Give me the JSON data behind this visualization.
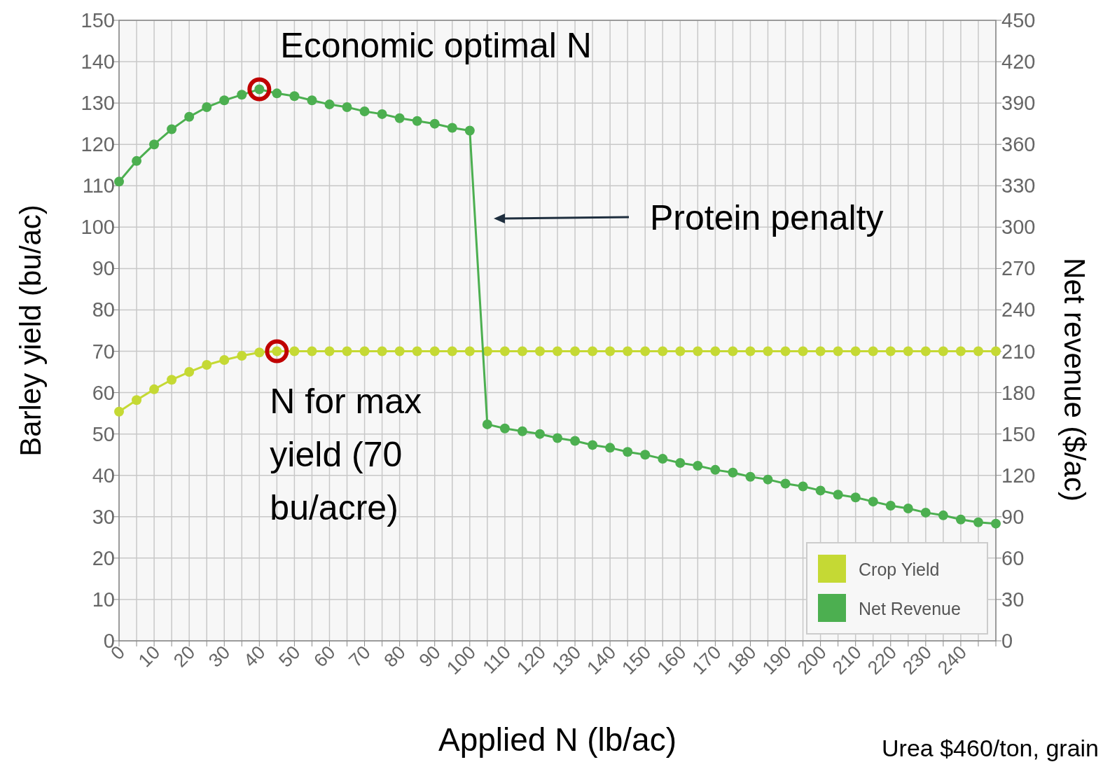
{
  "chart_data": {
    "type": "line",
    "xlabel": "Applied N (lb/ac)",
    "ylabel": "Barley yield (bu/ac)",
    "y2label": "Net revenue ($/ac)",
    "x": [
      0,
      5,
      10,
      15,
      20,
      25,
      30,
      35,
      40,
      45,
      50,
      55,
      60,
      65,
      70,
      75,
      80,
      85,
      90,
      95,
      100,
      105,
      110,
      115,
      120,
      125,
      130,
      135,
      140,
      145,
      150,
      155,
      160,
      165,
      170,
      175,
      180,
      185,
      190,
      195,
      200,
      205,
      210,
      215,
      220,
      225,
      230,
      235,
      240,
      245,
      250
    ],
    "series": [
      {
        "name": "Crop Yield",
        "color": "#c5d934",
        "values": [
          55.4,
          58.2,
          60.8,
          63.1,
          65,
          66.7,
          67.9,
          68.9,
          69.7,
          70,
          70,
          70,
          70,
          70,
          70,
          70,
          70,
          70,
          70,
          70,
          70,
          70,
          70,
          70,
          70,
          70,
          70,
          70,
          70,
          70,
          70,
          70,
          70,
          70,
          70,
          70,
          70,
          70,
          70,
          70,
          70,
          70,
          70,
          70,
          70,
          70,
          70,
          70,
          70,
          70,
          70
        ]
      },
      {
        "name": "Net Revenue",
        "color": "#4caf50",
        "axis": "y2",
        "values": [
          333,
          348,
          360,
          371,
          380,
          387,
          392,
          396,
          400,
          397,
          395,
          392,
          389,
          387,
          384,
          382,
          379,
          377,
          375,
          372,
          370,
          157,
          154,
          152,
          150,
          147,
          145,
          142,
          140,
          137,
          135,
          132,
          129,
          127,
          124,
          122,
          119,
          117,
          114,
          112,
          109,
          106,
          104,
          101,
          98,
          96,
          93,
          91,
          88,
          86,
          85
        ]
      },
      {
        "type": "scatter",
        "color": "#c00000",
        "marker": "circle",
        "x": [
          45
        ],
        "values": [
          70
        ]
      },
      {
        "type": "scatter",
        "color": "#c00000",
        "marker": "circle",
        "axis": "y2",
        "x": [
          40
        ],
        "values": [
          400
        ]
      }
    ],
    "xlim": [
      0,
      250
    ],
    "xticks": [
      0,
      {
        "value": 5,
        "label": null
      },
      10,
      {
        "value": 15,
        "label": null
      },
      20,
      {
        "value": 25,
        "label": null
      },
      30,
      {
        "value": 35,
        "label": null
      },
      40,
      {
        "value": 45,
        "label": null
      },
      50,
      {
        "value": 55,
        "label": null
      },
      60,
      {
        "value": 65,
        "label": null
      },
      70,
      {
        "value": 75,
        "label": null
      },
      80,
      {
        "value": 85,
        "label": null
      },
      90,
      {
        "value": 95,
        "label": null
      },
      100,
      {
        "value": 105,
        "label": null
      },
      110,
      {
        "value": 115,
        "label": null
      },
      120,
      {
        "value": 125,
        "label": null
      },
      130,
      {
        "value": 135,
        "label": null
      },
      140,
      {
        "value": 145,
        "label": null
      },
      150,
      {
        "value": 155,
        "label": null
      },
      160,
      {
        "value": 165,
        "label": null
      },
      170,
      {
        "value": 175,
        "label": null
      },
      180,
      {
        "value": 185,
        "label": null
      },
      190,
      {
        "value": 195,
        "label": null
      },
      200,
      {
        "value": 205,
        "label": null
      },
      210,
      {
        "value": 215,
        "label": null
      },
      220,
      {
        "value": 225,
        "label": null
      },
      230,
      {
        "value": 235,
        "label": null
      },
      240,
      {
        "value": 245,
        "label": null
      },
      {
        "value": 250,
        "label": null
      }
    ],
    "ylim": [
      0,
      150
    ],
    "yticks": [
      0,
      10,
      20,
      30,
      40,
      50,
      60,
      70,
      80,
      90,
      100,
      110,
      120,
      130,
      140,
      150
    ],
    "y2lim": [
      0,
      450
    ],
    "y2ticks": [
      0,
      30,
      60,
      90,
      120,
      150,
      180,
      210,
      240,
      270,
      300,
      330,
      360,
      390,
      420,
      450
    ],
    "grid": true,
    "legend": "bottom right",
    "marker": "circle",
    "line_style": "solid",
    "annotations": [
      {
        "text": "Economic optimal N",
        "x": 40,
        "y": 133.3
      },
      {
        "text": "N for max yield (70 bu/acre)",
        "x": 45,
        "y": 70
      },
      "Protein penalty",
      "Urea $460/ton, grain"
    ]
  }
}
